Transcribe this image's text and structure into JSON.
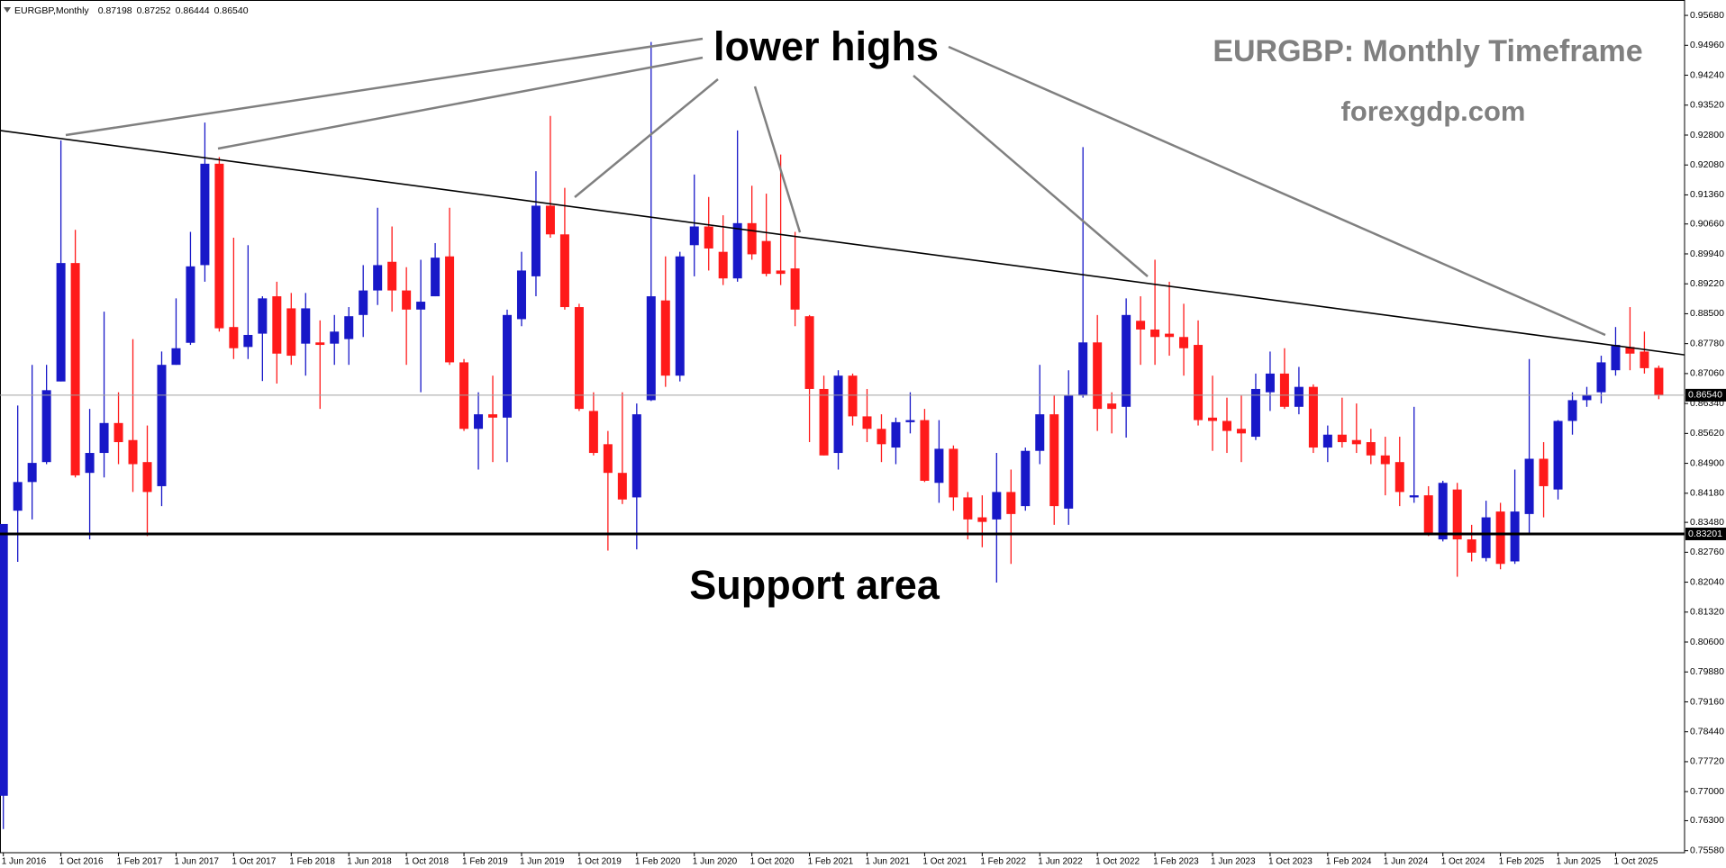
{
  "chart_data": {
    "type": "candlestick",
    "info": {
      "symbol": "EURGBP,Monthly",
      "values": [
        "0.87198",
        "0.87252",
        "0.86444",
        "0.86540"
      ]
    },
    "categories": [
      "1 Jun 2016",
      null,
      null,
      null,
      "1 Oct 2016",
      null,
      null,
      null,
      "1 Feb 2017",
      null,
      null,
      null,
      "1 Jun 2017",
      null,
      null,
      null,
      "1 Oct 2017",
      null,
      null,
      null,
      "1 Feb 2018",
      null,
      null,
      null,
      "1 Jun 2018",
      null,
      null,
      null,
      "1 Oct 2018",
      null,
      null,
      null,
      "1 Feb 2019",
      null,
      null,
      null,
      "1 Jun 2019",
      null,
      null,
      null,
      "1 Oct 2019",
      null,
      null,
      null,
      "1 Feb 2020",
      null,
      null,
      null,
      "1 Jun 2020",
      null,
      null,
      null,
      "1 Oct 2020",
      null,
      null,
      null,
      "1 Feb 2021",
      null,
      null,
      null,
      "1 Jun 2021",
      null,
      null,
      null,
      "1 Oct 2021",
      null,
      null,
      null,
      "1 Feb 2022",
      null,
      null,
      null,
      "1 Jun 2022",
      null,
      null,
      null,
      "1 Oct 2022",
      null,
      null,
      null,
      "1 Feb 2023",
      null,
      null,
      null,
      "1 Jun 2023",
      null,
      null,
      null,
      "1 Oct 2023",
      null,
      null,
      null,
      "1 Feb 2024",
      null,
      null,
      null,
      "1 Jun 2024",
      null,
      null,
      null,
      "1 Oct 2024",
      null,
      null,
      null,
      "1 Feb 2025",
      null,
      null,
      null,
      "1 Jun 2025",
      null,
      null,
      null,
      "1 Oct 2025",
      null,
      null,
      null
    ],
    "open": [
      0.769,
      0.8376,
      0.8445,
      0.8493,
      0.8687,
      0.8972,
      0.8467,
      0.8515,
      0.8587,
      0.8546,
      0.8493,
      0.8435,
      0.8727,
      0.878,
      0.8967,
      0.9211,
      0.8818,
      0.877,
      0.8802,
      0.8892,
      0.8863,
      0.8778,
      0.8781,
      0.8778,
      0.8789,
      0.8847,
      0.8906,
      0.8975,
      0.8906,
      0.886,
      0.8892,
      0.8988,
      0.8733,
      0.8573,
      0.8608,
      0.86,
      0.8837,
      0.894,
      0.911,
      0.9041,
      0.8866,
      0.8616,
      0.8536,
      0.8467,
      0.8408,
      0.8642,
      0.8882,
      0.8701,
      0.9015,
      0.906,
      0.8999,
      0.8935,
      0.9068,
      0.9025,
      0.8954,
      0.8959,
      0.8844,
      0.8669,
      0.8515,
      0.8701,
      0.8603,
      0.8573,
      0.8528,
      0.8589,
      0.8594,
      0.8443,
      0.8525,
      0.8408,
      0.836,
      0.8355,
      0.8421,
      0.8387,
      0.852,
      0.8608,
      0.8381,
      0.8653,
      0.8781,
      0.8634,
      0.8626,
      0.8833,
      0.8812,
      0.8802,
      0.8794,
      0.8775,
      0.86,
      0.8592,
      0.8573,
      0.8554,
      0.8661,
      0.8706,
      0.8626,
      0.8674,
      0.8528,
      0.8559,
      0.8546,
      0.8541,
      0.8509,
      0.8493,
      0.8408,
      0.8413,
      0.8307,
      0.8427,
      0.8307,
      0.8262,
      0.8374,
      0.8254,
      0.8368,
      0.8501,
      0.8427,
      0.8592,
      0.8642,
      0.8661,
      0.8714,
      0.877,
      0.8759,
      0.87198
    ],
    "high": [
      0.8344,
      0.8629,
      0.8727,
      0.8727,
      0.9267,
      0.9052,
      0.8621,
      0.8855,
      0.8661,
      0.8789,
      0.8581,
      0.8759,
      0.8887,
      0.9047,
      0.931,
      0.9227,
      0.9033,
      0.9015,
      0.8892,
      0.8927,
      0.89,
      0.89,
      0.8834,
      0.8847,
      0.8866,
      0.8967,
      0.9105,
      0.906,
      0.8962,
      0.898,
      0.902,
      0.9105,
      0.8741,
      0.8661,
      0.8701,
      0.886,
      0.8999,
      0.9193,
      0.9326,
      0.9153,
      0.8874,
      0.8661,
      0.8568,
      0.8661,
      0.8634,
      0.9504,
      0.8988,
      0.8999,
      0.9185,
      0.9131,
      0.9087,
      0.9291,
      0.9158,
      0.9139,
      0.9233,
      0.9047,
      0.8847,
      0.8701,
      0.8714,
      0.8706,
      0.8669,
      0.8608,
      0.86,
      0.8661,
      0.8621,
      0.8594,
      0.8533,
      0.8421,
      0.8413,
      0.8515,
      0.8475,
      0.8528,
      0.8727,
      0.8653,
      0.8714,
      0.9251,
      0.8847,
      0.8661,
      0.8887,
      0.8892,
      0.898,
      0.8927,
      0.8874,
      0.8834,
      0.8701,
      0.8648,
      0.8653,
      0.8706,
      0.8759,
      0.8767,
      0.8722,
      0.868,
      0.8581,
      0.8648,
      0.8634,
      0.8573,
      0.8554,
      0.8554,
      0.8626,
      0.8435,
      0.8448,
      0.8443,
      0.8342,
      0.84,
      0.8395,
      0.8475,
      0.8741,
      0.8541,
      0.8594,
      0.8661,
      0.8674,
      0.8749,
      0.8818,
      0.8866,
      0.8807,
      0.87252
    ],
    "low": [
      0.761,
      0.8253,
      0.8355,
      0.8488,
      0.8687,
      0.8456,
      0.8307,
      0.8456,
      0.8488,
      0.8421,
      0.8315,
      0.8387,
      0.8727,
      0.8775,
      0.8927,
      0.8807,
      0.8741,
      0.8741,
      0.8688,
      0.8682,
      0.8727,
      0.8701,
      0.8621,
      0.8727,
      0.8727,
      0.8794,
      0.8871,
      0.8855,
      0.8727,
      0.8661,
      0.8892,
      0.8727,
      0.8568,
      0.8475,
      0.8493,
      0.8493,
      0.882,
      0.8892,
      0.9033,
      0.886,
      0.8616,
      0.8509,
      0.828,
      0.8392,
      0.8283,
      0.864,
      0.8674,
      0.8687,
      0.894,
      0.8954,
      0.8919,
      0.8927,
      0.898,
      0.894,
      0.8919,
      0.882,
      0.8541,
      0.8509,
      0.8475,
      0.8581,
      0.8541,
      0.8493,
      0.8488,
      0.8562,
      0.8445,
      0.8395,
      0.8376,
      0.8307,
      0.8288,
      0.8203,
      0.8248,
      0.8376,
      0.8488,
      0.8342,
      0.8342,
      0.8648,
      0.8568,
      0.8562,
      0.8552,
      0.8727,
      0.8727,
      0.8749,
      0.8701,
      0.8581,
      0.852,
      0.8515,
      0.8493,
      0.8546,
      0.8616,
      0.8621,
      0.8608,
      0.8515,
      0.8493,
      0.8528,
      0.8515,
      0.8488,
      0.8413,
      0.8387,
      0.8395,
      0.8315,
      0.8302,
      0.8217,
      0.8254,
      0.8254,
      0.8235,
      0.8248,
      0.8323,
      0.836,
      0.8403,
      0.8559,
      0.8626,
      0.8634,
      0.8701,
      0.8714,
      0.8706,
      0.86444
    ],
    "close": [
      0.8344,
      0.8445,
      0.8491,
      0.8666,
      0.8972,
      0.8461,
      0.8515,
      0.8587,
      0.8541,
      0.8488,
      0.8421,
      0.8727,
      0.8767,
      0.8964,
      0.9211,
      0.8815,
      0.8767,
      0.8799,
      0.8887,
      0.8754,
      0.8749,
      0.8863,
      0.8775,
      0.8807,
      0.8844,
      0.8906,
      0.8967,
      0.8906,
      0.886,
      0.8879,
      0.8985,
      0.8733,
      0.8573,
      0.8608,
      0.86,
      0.8847,
      0.8954,
      0.911,
      0.9041,
      0.8866,
      0.8621,
      0.8515,
      0.8467,
      0.8403,
      0.8608,
      0.8892,
      0.8701,
      0.8988,
      0.906,
      0.9007,
      0.8935,
      0.9068,
      0.8993,
      0.8946,
      0.8946,
      0.886,
      0.8669,
      0.8509,
      0.8701,
      0.8603,
      0.8573,
      0.8536,
      0.8589,
      0.8594,
      0.8448,
      0.8525,
      0.8408,
      0.8355,
      0.8349,
      0.8421,
      0.8368,
      0.852,
      0.8608,
      0.8387,
      0.8653,
      0.8781,
      0.8621,
      0.8621,
      0.8847,
      0.8812,
      0.8794,
      0.8794,
      0.8767,
      0.8594,
      0.8592,
      0.8568,
      0.8562,
      0.8669,
      0.8706,
      0.8626,
      0.8674,
      0.8528,
      0.8559,
      0.8541,
      0.8536,
      0.8509,
      0.8488,
      0.8421,
      0.8413,
      0.8323,
      0.8443,
      0.8307,
      0.8275,
      0.836,
      0.8248,
      0.8374,
      0.8501,
      0.8435,
      0.8592,
      0.8642,
      0.8655,
      0.8733,
      0.8775,
      0.8754,
      0.8719,
      0.8654
    ],
    "up_color": "#1818c8",
    "down_color": "#ff1a1a",
    "ylim": [
      0.7553,
      0.9605
    ],
    "yticks": [
      {
        "value": 0.9568,
        "label": "0.95680"
      },
      {
        "value": 0.9496,
        "label": "0.94960"
      },
      {
        "value": 0.9424,
        "label": "0.94240"
      },
      {
        "value": 0.9352,
        "label": "0.93520"
      },
      {
        "value": 0.928,
        "label": "0.92800"
      },
      {
        "value": 0.9208,
        "label": "0.92080"
      },
      {
        "value": 0.9136,
        "label": "0.91360"
      },
      {
        "value": 0.9066,
        "label": "0.90660"
      },
      {
        "value": 0.8994,
        "label": "0.89940"
      },
      {
        "value": 0.8922,
        "label": "0.89220"
      },
      {
        "value": 0.885,
        "label": "0.88500"
      },
      {
        "value": 0.8778,
        "label": "0.87780"
      },
      {
        "value": 0.8706,
        "label": "0.87060"
      },
      {
        "value": 0.8634,
        "label": "0.86340"
      },
      {
        "value": 0.8562,
        "label": "0.85620"
      },
      {
        "value": 0.849,
        "label": "0.84900"
      },
      {
        "value": 0.8418,
        "label": "0.84180"
      },
      {
        "value": 0.8348,
        "label": "0.83480"
      },
      {
        "value": 0.8276,
        "label": "0.82760"
      },
      {
        "value": 0.8204,
        "label": "0.82040"
      },
      {
        "value": 0.8132,
        "label": "0.81320"
      },
      {
        "value": 0.806,
        "label": "0.80600"
      },
      {
        "value": 0.7988,
        "label": "0.79880"
      },
      {
        "value": 0.7916,
        "label": "0.79160"
      },
      {
        "value": 0.7844,
        "label": "0.78440"
      },
      {
        "value": 0.7772,
        "label": "0.77720"
      },
      {
        "value": 0.77,
        "label": "0.77000"
      },
      {
        "value": 0.763,
        "label": "0.76300"
      },
      {
        "value": 0.7558,
        "label": "0.75580"
      }
    ],
    "trendline": {
      "values": [
        0.9291,
        0.8751
      ],
      "color": "#000000"
    },
    "lines": [
      {
        "value": 0.8654,
        "label": "0.86540",
        "color": "#a0a0a0",
        "width": 1
      },
      {
        "value": 0.83201,
        "label": "0.83201",
        "color": "#000000",
        "width": 3
      }
    ],
    "annotations": {
      "pattern": "lower highs",
      "support": "Support area",
      "heading": "EURGBP: Monthly Timeframe",
      "site": "forexgdp.com"
    }
  }
}
